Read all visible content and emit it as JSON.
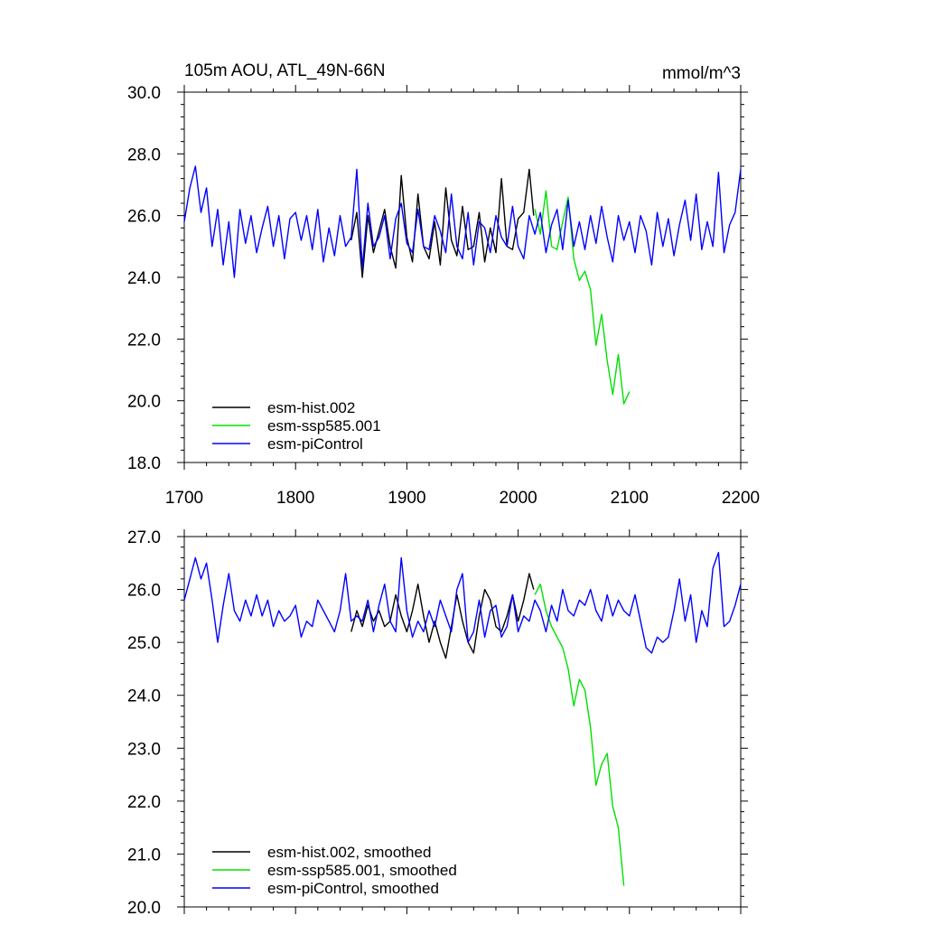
{
  "chart_data": [
    {
      "type": "line",
      "title": "105m AOU, ATL_49N-66N",
      "units": "mmol/m^3",
      "xlim": [
        1700,
        2200
      ],
      "ylim": [
        18.0,
        30.0
      ],
      "x_ticks": [
        "1700",
        "1800",
        "1900",
        "2000",
        "2100",
        "2200"
      ],
      "y_ticks": [
        "18.0",
        "20.0",
        "22.0",
        "24.0",
        "26.0",
        "28.0",
        "30.0"
      ],
      "legend_position": "bottom-left",
      "series": [
        {
          "name": "esm-hist.002",
          "color": "#000000",
          "x": [
            1850,
            1855,
            1860,
            1865,
            1870,
            1875,
            1880,
            1885,
            1890,
            1895,
            1900,
            1905,
            1910,
            1915,
            1920,
            1925,
            1930,
            1935,
            1940,
            1945,
            1950,
            1955,
            1960,
            1965,
            1970,
            1975,
            1980,
            1985,
            1990,
            1995,
            2000,
            2005,
            2010,
            2014
          ],
          "y": [
            25.2,
            26.1,
            24.0,
            26.0,
            24.8,
            25.5,
            26.2,
            25.0,
            24.3,
            27.3,
            25.3,
            24.5,
            26.7,
            25.0,
            24.6,
            25.8,
            24.4,
            26.9,
            25.2,
            24.7,
            26.3,
            24.9,
            25.0,
            26.1,
            24.5,
            25.6,
            24.8,
            27.2,
            25.0,
            24.9,
            25.9,
            26.1,
            27.5,
            26.0
          ]
        },
        {
          "name": "esm-ssp585.001",
          "color": "#00e000",
          "x": [
            2015,
            2020,
            2025,
            2030,
            2035,
            2040,
            2045,
            2050,
            2055,
            2060,
            2065,
            2070,
            2075,
            2080,
            2085,
            2090,
            2095,
            2100
          ],
          "y": [
            26.2,
            25.4,
            26.8,
            25.0,
            24.9,
            25.8,
            26.6,
            24.6,
            23.9,
            24.2,
            23.6,
            21.8,
            22.8,
            21.3,
            20.2,
            21.5,
            19.9,
            20.3
          ]
        },
        {
          "name": "esm-piControl",
          "color": "#0000ff",
          "x": [
            1700,
            1705,
            1710,
            1715,
            1720,
            1725,
            1730,
            1735,
            1740,
            1745,
            1750,
            1755,
            1760,
            1765,
            1770,
            1775,
            1780,
            1785,
            1790,
            1795,
            1800,
            1805,
            1810,
            1815,
            1820,
            1825,
            1830,
            1835,
            1840,
            1845,
            1850,
            1855,
            1860,
            1865,
            1870,
            1875,
            1880,
            1885,
            1890,
            1895,
            1900,
            1905,
            1910,
            1915,
            1920,
            1925,
            1930,
            1935,
            1940,
            1945,
            1950,
            1955,
            1960,
            1965,
            1970,
            1975,
            1980,
            1985,
            1990,
            1995,
            2000,
            2005,
            2010,
            2015,
            2020,
            2025,
            2030,
            2035,
            2040,
            2045,
            2050,
            2055,
            2060,
            2065,
            2070,
            2075,
            2080,
            2085,
            2090,
            2095,
            2100,
            2105,
            2110,
            2115,
            2120,
            2125,
            2130,
            2135,
            2140,
            2145,
            2150,
            2155,
            2160,
            2165,
            2170,
            2175,
            2180,
            2185,
            2190,
            2195,
            2200
          ],
          "y": [
            25.8,
            26.9,
            27.6,
            26.1,
            26.9,
            25.0,
            26.2,
            24.4,
            25.8,
            24.0,
            26.2,
            25.1,
            26.0,
            24.8,
            25.6,
            26.3,
            25.0,
            26.0,
            24.6,
            25.9,
            26.1,
            25.2,
            26.0,
            24.9,
            26.2,
            24.5,
            25.6,
            24.7,
            26.0,
            25.0,
            25.3,
            27.5,
            24.3,
            26.4,
            25.0,
            25.3,
            26.0,
            24.6,
            25.9,
            26.4,
            25.1,
            24.8,
            26.2,
            25.0,
            24.9,
            26.0,
            25.5,
            24.8,
            26.7,
            25.0,
            24.6,
            26.1,
            24.4,
            25.8,
            25.6,
            24.8,
            26.0,
            25.3,
            25.0,
            26.3,
            25.0,
            24.6,
            26.0,
            25.4,
            26.1,
            24.8,
            25.7,
            26.2,
            24.9,
            26.5,
            25.0,
            25.8,
            24.9,
            26.0,
            25.1,
            26.3,
            25.3,
            24.5,
            26.0,
            25.2,
            25.8,
            24.8,
            26.0,
            25.5,
            24.4,
            26.1,
            25.0,
            25.9,
            24.7,
            25.7,
            26.5,
            25.2,
            26.7,
            24.9,
            25.8,
            25.0,
            27.4,
            24.8,
            25.7,
            26.1,
            27.5
          ]
        }
      ]
    },
    {
      "type": "line",
      "title": "",
      "xlim": [
        1700,
        2200
      ],
      "ylim": [
        20.0,
        27.0
      ],
      "y_ticks": [
        "20.0",
        "21.0",
        "22.0",
        "23.0",
        "24.0",
        "25.0",
        "26.0",
        "27.0"
      ],
      "legend_position": "bottom-left",
      "series": [
        {
          "name": "esm-hist.002, smoothed",
          "color": "#000000",
          "x": [
            1850,
            1855,
            1860,
            1865,
            1870,
            1875,
            1880,
            1885,
            1890,
            1895,
            1900,
            1905,
            1910,
            1915,
            1920,
            1925,
            1930,
            1935,
            1940,
            1945,
            1950,
            1955,
            1960,
            1965,
            1970,
            1975,
            1980,
            1985,
            1990,
            1995,
            2000,
            2005,
            2010,
            2014
          ],
          "y": [
            25.2,
            25.6,
            25.3,
            25.7,
            25.4,
            25.6,
            25.3,
            25.4,
            25.9,
            25.5,
            25.2,
            25.6,
            26.1,
            25.5,
            25.0,
            25.4,
            25.0,
            24.7,
            25.3,
            25.9,
            25.4,
            25.0,
            24.8,
            25.5,
            26.0,
            25.8,
            25.3,
            25.2,
            25.5,
            25.9,
            25.4,
            25.8,
            26.3,
            26.0
          ]
        },
        {
          "name": "esm-ssp585.001, smoothed",
          "color": "#00e000",
          "x": [
            2015,
            2020,
            2025,
            2030,
            2035,
            2040,
            2045,
            2050,
            2055,
            2060,
            2065,
            2070,
            2075,
            2080,
            2085,
            2090,
            2095
          ],
          "y": [
            25.9,
            26.1,
            25.6,
            25.3,
            25.1,
            24.9,
            24.5,
            23.8,
            24.3,
            24.1,
            23.4,
            22.3,
            22.7,
            22.9,
            21.9,
            21.5,
            20.4
          ]
        },
        {
          "name": "esm-piControl, smoothed",
          "color": "#0000ff",
          "x": [
            1700,
            1705,
            1710,
            1715,
            1720,
            1725,
            1730,
            1735,
            1740,
            1745,
            1750,
            1755,
            1760,
            1765,
            1770,
            1775,
            1780,
            1785,
            1790,
            1795,
            1800,
            1805,
            1810,
            1815,
            1820,
            1825,
            1830,
            1835,
            1840,
            1845,
            1850,
            1855,
            1860,
            1865,
            1870,
            1875,
            1880,
            1885,
            1890,
            1895,
            1900,
            1905,
            1910,
            1915,
            1920,
            1925,
            1930,
            1935,
            1940,
            1945,
            1950,
            1955,
            1960,
            1965,
            1970,
            1975,
            1980,
            1985,
            1990,
            1995,
            2000,
            2005,
            2010,
            2015,
            2020,
            2025,
            2030,
            2035,
            2040,
            2045,
            2050,
            2055,
            2060,
            2065,
            2070,
            2075,
            2080,
            2085,
            2090,
            2095,
            2100,
            2105,
            2110,
            2115,
            2120,
            2125,
            2130,
            2135,
            2140,
            2145,
            2150,
            2155,
            2160,
            2165,
            2170,
            2175,
            2180,
            2185,
            2190,
            2195,
            2200
          ],
          "y": [
            25.8,
            26.2,
            26.6,
            26.2,
            26.5,
            25.8,
            25.0,
            25.7,
            26.3,
            25.6,
            25.4,
            25.8,
            25.5,
            25.9,
            25.5,
            25.8,
            25.3,
            25.6,
            25.4,
            25.5,
            25.7,
            25.1,
            25.4,
            25.3,
            25.8,
            25.6,
            25.4,
            25.2,
            25.6,
            26.3,
            25.4,
            25.5,
            25.4,
            25.8,
            25.2,
            25.7,
            26.1,
            25.4,
            25.2,
            26.6,
            25.6,
            25.1,
            25.4,
            25.2,
            25.6,
            25.3,
            25.8,
            25.5,
            25.2,
            26.0,
            26.3,
            25.0,
            25.2,
            25.8,
            25.1,
            25.6,
            25.7,
            25.1,
            25.3,
            25.9,
            25.2,
            25.5,
            25.4,
            25.8,
            25.6,
            25.2,
            25.7,
            25.4,
            26.0,
            25.6,
            25.5,
            25.8,
            25.7,
            26.0,
            25.6,
            25.4,
            25.9,
            25.5,
            25.8,
            25.6,
            25.5,
            25.9,
            25.4,
            24.9,
            24.8,
            25.1,
            25.0,
            25.1,
            25.6,
            26.2,
            25.4,
            25.9,
            25.0,
            25.6,
            25.3,
            26.4,
            26.7,
            25.3,
            25.4,
            25.7,
            26.1
          ]
        }
      ]
    }
  ]
}
